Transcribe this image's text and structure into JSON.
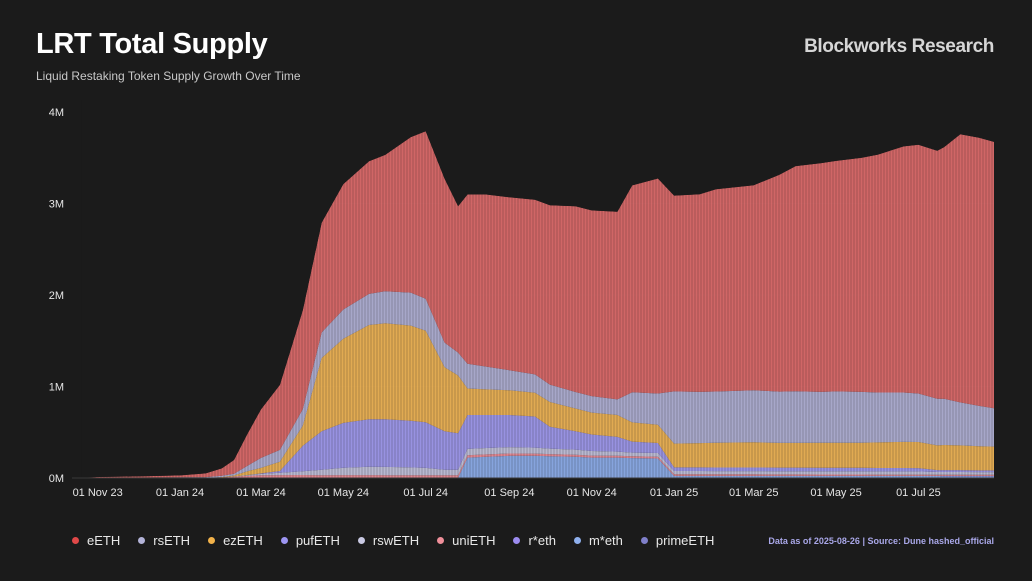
{
  "header": {
    "title": "LRT Total Supply",
    "subtitle": "Liquid Restaking Token Supply Growth Over Time",
    "brand": "Blockworks Research"
  },
  "footer": {
    "source": "Data as of 2025-08-26 | Source: Dune hashed_official"
  },
  "colors": {
    "background": "#1b1b1b",
    "eETH": "#e06d6d",
    "rsETH": "#b3b3d8",
    "ezETH": "#f2b657",
    "pufETH": "#a39cf2",
    "rswETH": "#c5c5e0",
    "uniETH": "#f08f9a",
    "r*eth": "#9c8cf0",
    "m*eth": "#8fb0ee",
    "primeETH": "#7f7fc9"
  },
  "chart_data": {
    "type": "area",
    "stacked": true,
    "ylim": [
      0,
      4000000
    ],
    "yticks": [
      {
        "value": 0,
        "label": "0M"
      },
      {
        "value": 1000000,
        "label": "1M"
      },
      {
        "value": 2000000,
        "label": "2M"
      },
      {
        "value": 3000000,
        "label": "3M"
      },
      {
        "value": 4000000,
        "label": "4M"
      }
    ],
    "xlim": [
      "2023-10-13",
      "2025-08-26"
    ],
    "xticks": [
      {
        "value": "2023-11-01",
        "label": "01 Nov 23"
      },
      {
        "value": "2024-01-01",
        "label": "01 Jan 24"
      },
      {
        "value": "2024-03-01",
        "label": "01 Mar 24"
      },
      {
        "value": "2024-05-01",
        "label": "01 May 24"
      },
      {
        "value": "2024-07-01",
        "label": "01 Jul 24"
      },
      {
        "value": "2024-09-01",
        "label": "01 Sep 24"
      },
      {
        "value": "2024-11-01",
        "label": "01 Nov 24"
      },
      {
        "value": "2025-01-01",
        "label": "01 Jan 25"
      },
      {
        "value": "2025-03-01",
        "label": "01 Mar 25"
      },
      {
        "value": "2025-05-01",
        "label": "01 May 25"
      },
      {
        "value": "2025-07-01",
        "label": "01 Jul 25"
      }
    ],
    "grid": true,
    "legend_position": "bottom-left",
    "x": [
      "2023-10-20",
      "2023-11-01",
      "2023-12-01",
      "2024-01-01",
      "2024-01-20",
      "2024-02-01",
      "2024-02-10",
      "2024-02-20",
      "2024-03-01",
      "2024-03-15",
      "2024-04-01",
      "2024-04-15",
      "2024-05-01",
      "2024-05-20",
      "2024-06-01",
      "2024-06-20",
      "2024-07-01",
      "2024-07-15",
      "2024-07-25",
      "2024-08-01",
      "2024-08-15",
      "2024-09-01",
      "2024-09-20",
      "2024-10-01",
      "2024-10-20",
      "2024-11-01",
      "2024-11-20",
      "2024-12-01",
      "2024-12-20",
      "2025-01-01",
      "2025-01-20",
      "2025-02-01",
      "2025-03-01",
      "2025-03-20",
      "2025-04-01",
      "2025-04-20",
      "2025-05-01",
      "2025-05-20",
      "2025-06-01",
      "2025-06-20",
      "2025-07-01",
      "2025-07-15",
      "2025-07-20",
      "2025-08-01",
      "2025-08-15",
      "2025-08-26"
    ],
    "series": [
      {
        "name": "primeETH",
        "values": [
          0,
          0,
          0,
          0,
          0,
          0,
          0,
          0,
          0,
          2000,
          3000,
          3000,
          4000,
          4000,
          4000,
          4000,
          4000,
          4000,
          4000,
          3000,
          3000,
          3000,
          3000,
          3000,
          3000,
          3000,
          3000,
          3000,
          3000,
          3000,
          3000,
          3000,
          3000,
          3000,
          3000,
          3000,
          3000,
          3000,
          3000,
          3000,
          3000,
          3000,
          3000,
          3000,
          3000,
          3000
        ]
      },
      {
        "name": "m*eth",
        "values": [
          0,
          0,
          0,
          0,
          0,
          0,
          0,
          0,
          0,
          0,
          0,
          0,
          0,
          0,
          0,
          0,
          0,
          0,
          0,
          220000,
          230000,
          240000,
          240000,
          235000,
          230000,
          220000,
          220000,
          215000,
          210000,
          20000,
          20000,
          20000,
          20000,
          20000,
          20000,
          20000,
          20000,
          20000,
          20000,
          20000,
          20000,
          20000,
          15000,
          15000,
          15000,
          15000
        ]
      },
      {
        "name": "r*eth",
        "values": [
          0,
          0,
          0,
          0,
          0,
          0,
          0,
          0,
          0,
          0,
          0,
          0,
          0,
          0,
          0,
          0,
          0,
          0,
          0,
          0,
          0,
          0,
          0,
          0,
          0,
          0,
          0,
          0,
          0,
          0,
          0,
          0,
          0,
          0,
          0,
          0,
          0,
          0,
          0,
          0,
          0,
          0,
          5000,
          5000,
          5000,
          5000
        ]
      },
      {
        "name": "uniETH",
        "values": [
          0,
          0,
          0,
          0,
          0,
          5000,
          15000,
          25000,
          30000,
          30000,
          30000,
          28000,
          28000,
          28000,
          27000,
          27000,
          26000,
          26000,
          26000,
          25000,
          25000,
          25000,
          24000,
          23000,
          22000,
          22000,
          21000,
          20000,
          20000,
          18000,
          18000,
          17000,
          17000,
          16000,
          16000,
          15000,
          15000,
          15000,
          14000,
          14000,
          14000,
          13000,
          13000,
          13000,
          12000,
          12000
        ]
      },
      {
        "name": "rswETH",
        "values": [
          0,
          0,
          0,
          0,
          0,
          0,
          2000,
          8000,
          15000,
          25000,
          40000,
          60000,
          80000,
          90000,
          90000,
          85000,
          80000,
          60000,
          60000,
          70000,
          70000,
          70000,
          65000,
          60000,
          55000,
          50000,
          45000,
          40000,
          40000,
          35000,
          35000,
          35000,
          35000,
          35000,
          35000,
          35000,
          35000,
          35000,
          35000,
          35000,
          35000,
          30000,
          30000,
          30000,
          30000,
          30000
        ]
      },
      {
        "name": "pufETH",
        "values": [
          0,
          0,
          0,
          0,
          0,
          0,
          0,
          0,
          5000,
          20000,
          280000,
          420000,
          490000,
          520000,
          520000,
          510000,
          500000,
          420000,
          400000,
          370000,
          360000,
          350000,
          340000,
          240000,
          200000,
          180000,
          160000,
          120000,
          110000,
          40000,
          40000,
          40000,
          40000,
          40000,
          40000,
          38000,
          38000,
          38000,
          37000,
          37000,
          36000,
          20000,
          20000,
          20000,
          18000,
          18000
        ]
      },
      {
        "name": "ezETH",
        "values": [
          0,
          0,
          0,
          0,
          0,
          5000,
          10000,
          40000,
          60000,
          100000,
          220000,
          800000,
          920000,
          1030000,
          1050000,
          1040000,
          1000000,
          700000,
          630000,
          290000,
          280000,
          270000,
          260000,
          270000,
          250000,
          240000,
          240000,
          210000,
          200000,
          260000,
          265000,
          270000,
          275000,
          270000,
          270000,
          275000,
          275000,
          275000,
          280000,
          285000,
          285000,
          270000,
          275000,
          270000,
          265000,
          260000
        ]
      },
      {
        "name": "rsETH",
        "values": [
          1000,
          3000,
          5000,
          8000,
          10000,
          15000,
          20000,
          60000,
          110000,
          130000,
          180000,
          280000,
          320000,
          340000,
          350000,
          360000,
          350000,
          270000,
          250000,
          270000,
          250000,
          220000,
          200000,
          190000,
          180000,
          180000,
          170000,
          330000,
          340000,
          570000,
          560000,
          560000,
          570000,
          560000,
          565000,
          555000,
          560000,
          555000,
          545000,
          540000,
          530000,
          510000,
          505000,
          470000,
          440000,
          420000
        ]
      },
      {
        "name": "eETH",
        "values": [
          2000,
          8000,
          12000,
          20000,
          40000,
          80000,
          150000,
          350000,
          530000,
          710000,
          1080000,
          1200000,
          1370000,
          1450000,
          1490000,
          1700000,
          1830000,
          1790000,
          1600000,
          1850000,
          1880000,
          1890000,
          1910000,
          1960000,
          2030000,
          2030000,
          2050000,
          2260000,
          2350000,
          2140000,
          2160000,
          2210000,
          2240000,
          2370000,
          2460000,
          2500000,
          2520000,
          2560000,
          2600000,
          2690000,
          2720000,
          2710000,
          2750000,
          2930000,
          2930000,
          2910000
        ]
      }
    ],
    "legend": [
      "eETH",
      "rsETH",
      "ezETH",
      "pufETH",
      "rswETH",
      "uniETH",
      "r*eth",
      "m*eth",
      "primeETH"
    ]
  }
}
